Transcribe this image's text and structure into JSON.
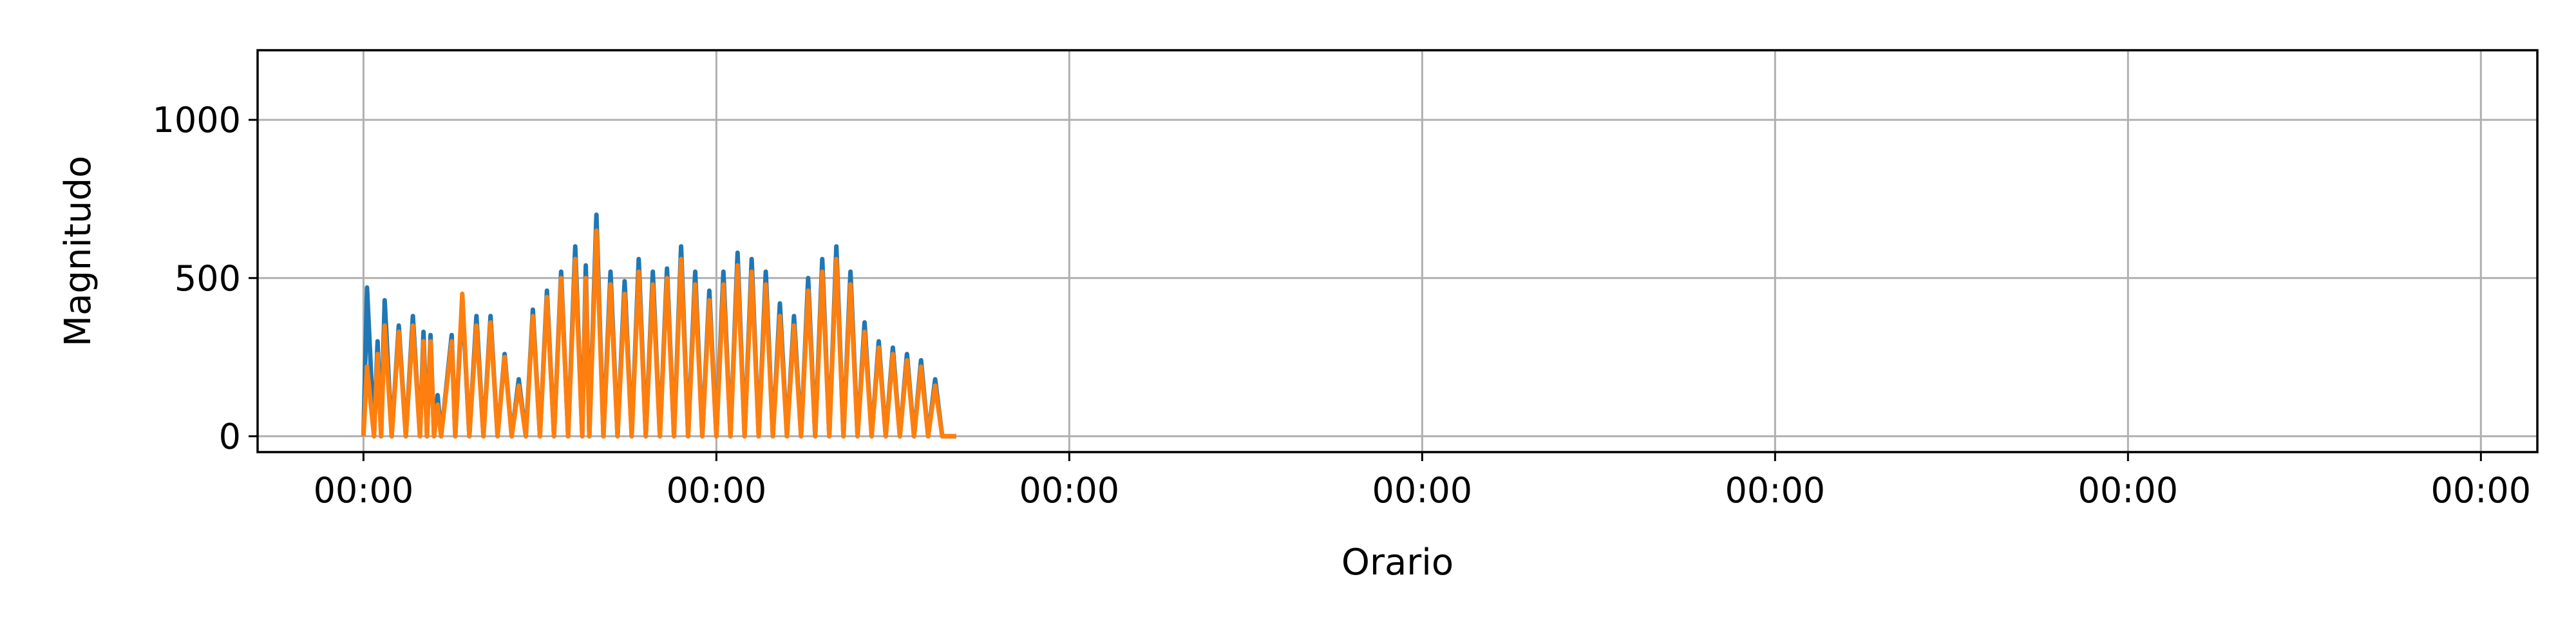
{
  "chart_data": {
    "type": "line",
    "title": "",
    "xlabel": "Orario",
    "ylabel": "Magnitudo",
    "x_tick_labels": [
      "00:00",
      "00:00",
      "00:00",
      "00:00",
      "00:00",
      "00:00",
      "00:00"
    ],
    "x_tick_positions_days": [
      0,
      1,
      2,
      3,
      4,
      5,
      6
    ],
    "xlim_days": [
      -0.3,
      6.16
    ],
    "y_ticks": [
      0,
      500,
      1000
    ],
    "ylim": [
      -50,
      1220
    ],
    "grid": true,
    "legend": "none",
    "series": [
      {
        "color": "#1f77b4",
        "points": [
          [
            0.0,
            0
          ],
          [
            0.01,
            470
          ],
          [
            0.03,
            0
          ],
          [
            0.04,
            300
          ],
          [
            0.05,
            0
          ],
          [
            0.06,
            430
          ],
          [
            0.08,
            0
          ],
          [
            0.1,
            350
          ],
          [
            0.12,
            0
          ],
          [
            0.14,
            380
          ],
          [
            0.16,
            0
          ],
          [
            0.17,
            330
          ],
          [
            0.18,
            0
          ],
          [
            0.19,
            320
          ],
          [
            0.2,
            0
          ],
          [
            0.21,
            130
          ],
          [
            0.22,
            0
          ],
          [
            0.25,
            320
          ],
          [
            0.26,
            0
          ],
          [
            0.28,
            430
          ],
          [
            0.3,
            0
          ],
          [
            0.32,
            380
          ],
          [
            0.34,
            0
          ],
          [
            0.36,
            380
          ],
          [
            0.38,
            0
          ],
          [
            0.4,
            260
          ],
          [
            0.42,
            0
          ],
          [
            0.44,
            180
          ],
          [
            0.46,
            0
          ],
          [
            0.48,
            400
          ],
          [
            0.5,
            0
          ],
          [
            0.52,
            460
          ],
          [
            0.54,
            0
          ],
          [
            0.56,
            520
          ],
          [
            0.58,
            0
          ],
          [
            0.6,
            600
          ],
          [
            0.62,
            0
          ],
          [
            0.63,
            540
          ],
          [
            0.64,
            0
          ],
          [
            0.66,
            700
          ],
          [
            0.68,
            0
          ],
          [
            0.7,
            520
          ],
          [
            0.72,
            0
          ],
          [
            0.74,
            490
          ],
          [
            0.76,
            0
          ],
          [
            0.78,
            560
          ],
          [
            0.8,
            0
          ],
          [
            0.82,
            520
          ],
          [
            0.84,
            0
          ],
          [
            0.86,
            530
          ],
          [
            0.88,
            0
          ],
          [
            0.9,
            600
          ],
          [
            0.92,
            0
          ],
          [
            0.94,
            520
          ],
          [
            0.96,
            0
          ],
          [
            0.98,
            460
          ],
          [
            1.0,
            0
          ],
          [
            1.02,
            520
          ],
          [
            1.04,
            0
          ],
          [
            1.06,
            580
          ],
          [
            1.08,
            0
          ],
          [
            1.1,
            560
          ],
          [
            1.12,
            0
          ],
          [
            1.14,
            520
          ],
          [
            1.16,
            0
          ],
          [
            1.18,
            420
          ],
          [
            1.2,
            0
          ],
          [
            1.22,
            380
          ],
          [
            1.24,
            0
          ],
          [
            1.26,
            500
          ],
          [
            1.28,
            0
          ],
          [
            1.3,
            560
          ],
          [
            1.32,
            0
          ],
          [
            1.34,
            600
          ],
          [
            1.36,
            0
          ],
          [
            1.38,
            520
          ],
          [
            1.4,
            0
          ],
          [
            1.42,
            360
          ],
          [
            1.44,
            0
          ],
          [
            1.46,
            300
          ],
          [
            1.48,
            0
          ],
          [
            1.5,
            280
          ],
          [
            1.52,
            0
          ],
          [
            1.54,
            260
          ],
          [
            1.56,
            0
          ],
          [
            1.58,
            240
          ],
          [
            1.6,
            0
          ],
          [
            1.62,
            180
          ],
          [
            1.64,
            0
          ],
          [
            1.66,
            0
          ],
          [
            1.68,
            0
          ]
        ]
      },
      {
        "color": "#ff7f0e",
        "points": [
          [
            0.0,
            0
          ],
          [
            0.01,
            220
          ],
          [
            0.03,
            0
          ],
          [
            0.04,
            260
          ],
          [
            0.05,
            0
          ],
          [
            0.06,
            350
          ],
          [
            0.08,
            0
          ],
          [
            0.1,
            330
          ],
          [
            0.12,
            0
          ],
          [
            0.14,
            350
          ],
          [
            0.16,
            0
          ],
          [
            0.17,
            300
          ],
          [
            0.18,
            0
          ],
          [
            0.19,
            300
          ],
          [
            0.2,
            0
          ],
          [
            0.21,
            100
          ],
          [
            0.22,
            0
          ],
          [
            0.25,
            300
          ],
          [
            0.26,
            0
          ],
          [
            0.28,
            450
          ],
          [
            0.3,
            0
          ],
          [
            0.32,
            350
          ],
          [
            0.34,
            0
          ],
          [
            0.36,
            360
          ],
          [
            0.38,
            0
          ],
          [
            0.4,
            250
          ],
          [
            0.42,
            0
          ],
          [
            0.44,
            160
          ],
          [
            0.46,
            0
          ],
          [
            0.48,
            380
          ],
          [
            0.5,
            0
          ],
          [
            0.52,
            440
          ],
          [
            0.54,
            0
          ],
          [
            0.56,
            500
          ],
          [
            0.58,
            0
          ],
          [
            0.6,
            560
          ],
          [
            0.62,
            0
          ],
          [
            0.63,
            500
          ],
          [
            0.64,
            0
          ],
          [
            0.66,
            650
          ],
          [
            0.68,
            0
          ],
          [
            0.7,
            480
          ],
          [
            0.72,
            0
          ],
          [
            0.74,
            450
          ],
          [
            0.76,
            0
          ],
          [
            0.78,
            520
          ],
          [
            0.8,
            0
          ],
          [
            0.82,
            480
          ],
          [
            0.84,
            0
          ],
          [
            0.86,
            500
          ],
          [
            0.88,
            0
          ],
          [
            0.9,
            560
          ],
          [
            0.92,
            0
          ],
          [
            0.94,
            480
          ],
          [
            0.96,
            0
          ],
          [
            0.98,
            430
          ],
          [
            1.0,
            0
          ],
          [
            1.02,
            480
          ],
          [
            1.04,
            0
          ],
          [
            1.06,
            540
          ],
          [
            1.08,
            0
          ],
          [
            1.1,
            520
          ],
          [
            1.12,
            0
          ],
          [
            1.14,
            480
          ],
          [
            1.16,
            0
          ],
          [
            1.18,
            380
          ],
          [
            1.2,
            0
          ],
          [
            1.22,
            350
          ],
          [
            1.24,
            0
          ],
          [
            1.26,
            460
          ],
          [
            1.28,
            0
          ],
          [
            1.3,
            520
          ],
          [
            1.32,
            0
          ],
          [
            1.34,
            560
          ],
          [
            1.36,
            0
          ],
          [
            1.38,
            480
          ],
          [
            1.4,
            0
          ],
          [
            1.42,
            330
          ],
          [
            1.44,
            0
          ],
          [
            1.46,
            280
          ],
          [
            1.48,
            0
          ],
          [
            1.5,
            260
          ],
          [
            1.52,
            0
          ],
          [
            1.54,
            240
          ],
          [
            1.56,
            0
          ],
          [
            1.58,
            220
          ],
          [
            1.6,
            0
          ],
          [
            1.62,
            160
          ],
          [
            1.64,
            0
          ],
          [
            1.66,
            0
          ],
          [
            1.68,
            0
          ]
        ]
      }
    ]
  }
}
